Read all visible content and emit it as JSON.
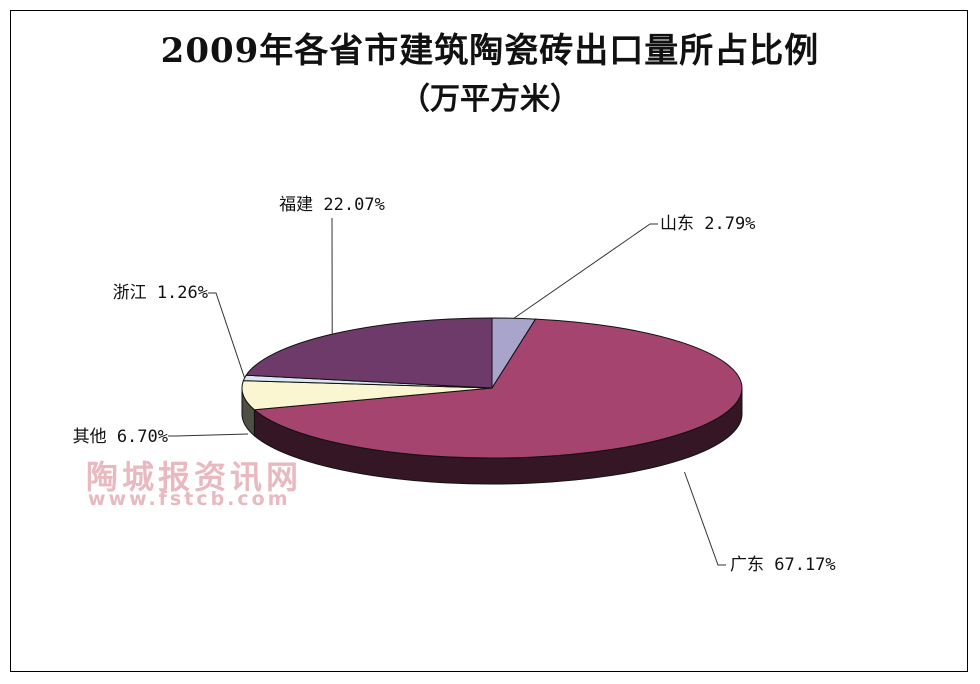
{
  "chart_data": {
    "type": "pie",
    "title": "2009年各省市建筑陶瓷砖出口量所占比例",
    "subtitle": "（万平方米）",
    "slices": [
      {
        "label": "山东",
        "value": 2.79,
        "display": "2.79%",
        "color": "#a8a4cc"
      },
      {
        "label": "广东",
        "value": 67.17,
        "display": "67.17%",
        "color": "#a64470"
      },
      {
        "label": "其他",
        "value": 6.7,
        "display": "6.70%",
        "color": "#fbf6d2"
      },
      {
        "label": "浙江",
        "value": 1.26,
        "display": "1.26%",
        "color": "#d8e7f2"
      },
      {
        "label": "福建",
        "value": 22.07,
        "display": "22.07%",
        "color": "#6e3a6a"
      }
    ],
    "legend": "none",
    "grid": false
  },
  "watermark": {
    "text": "陶城报资讯网",
    "url": "www.fstcb.com"
  }
}
